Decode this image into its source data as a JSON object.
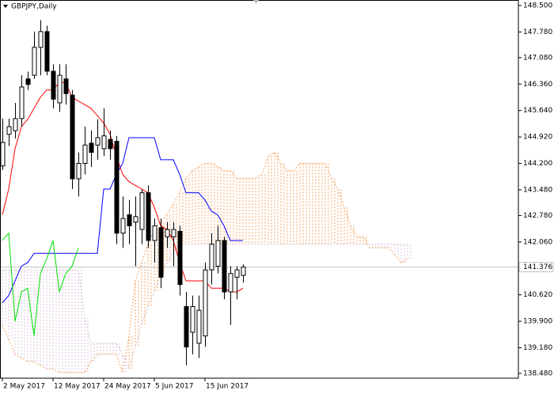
{
  "chart_data": {
    "type": "candlestick",
    "title": "GBPJPY,Daily",
    "categories": [
      "2 May 2017",
      null,
      null,
      null,
      null,
      null,
      null,
      null,
      "12 May 2017",
      null,
      null,
      null,
      null,
      null,
      null,
      null,
      "24 May 2017",
      null,
      null,
      null,
      null,
      null,
      null,
      null,
      "5 Jun 2017",
      null,
      null,
      null,
      null,
      null,
      null,
      null,
      "15 Jun 2017",
      null,
      null,
      null,
      null,
      null,
      null,
      null,
      null,
      null,
      null,
      null,
      null,
      null,
      null,
      null,
      null,
      null,
      null,
      null,
      null,
      null,
      null,
      null,
      null,
      null,
      null,
      null,
      null,
      null,
      null,
      null,
      null
    ],
    "open": [
      144.13,
      144.99,
      145.09,
      145.42,
      146.5,
      146.6,
      147.36,
      147.79,
      146.71,
      145.85,
      146.5,
      146.06,
      143.78,
      144.2,
      144.75,
      144.7,
      144.6,
      144.85,
      144.8,
      142.3,
      142.8,
      142.6,
      142.4,
      143.4,
      142.1,
      142.45,
      142.2,
      142.2,
      142.35,
      140.3,
      139.6,
      139.3,
      139.5,
      141.3,
      141.4,
      142.1,
      140.7,
      141.1,
      141.15,
      null,
      null,
      null,
      null,
      null,
      null,
      null,
      null,
      null,
      null,
      null,
      null,
      null,
      null,
      null,
      null,
      null,
      null,
      null,
      null,
      null,
      null,
      null,
      null,
      null,
      null
    ],
    "high": [
      145.42,
      145.42,
      145.85,
      146.6,
      146.7,
      147.79,
      148.1,
      147.95,
      146.9,
      146.9,
      146.9,
      146.2,
      144.5,
      145.2,
      145.1,
      145.4,
      145.7,
      145.1,
      144.95,
      143.3,
      143.2,
      143.3,
      143.5,
      143.6,
      142.7,
      142.7,
      142.6,
      142.6,
      142.5,
      140.7,
      140.6,
      140.6,
      141.5,
      142.3,
      142.5,
      142.2,
      141.4,
      141.4,
      141.45,
      null,
      null,
      null,
      null,
      null,
      null,
      null,
      null,
      null,
      null,
      null,
      null,
      null,
      null,
      null,
      null,
      null,
      null,
      null,
      null,
      null,
      null,
      null,
      null,
      null,
      null
    ],
    "low": [
      144.02,
      144.67,
      144.88,
      145.2,
      146.2,
      146.5,
      146.6,
      146.6,
      145.7,
      145.6,
      145.8,
      143.5,
      143.3,
      143.9,
      144.1,
      144.3,
      144.4,
      144.3,
      142.0,
      141.9,
      142.0,
      141.4,
      142.0,
      141.9,
      141.5,
      140.8,
      141.9,
      141.4,
      140.6,
      138.7,
      139.0,
      138.9,
      139.2,
      140.9,
      141.2,
      140.5,
      139.8,
      140.5,
      140.95,
      null,
      null,
      null,
      null,
      null,
      null,
      null,
      null,
      null,
      null,
      null,
      null,
      null,
      null,
      null,
      null,
      null,
      null,
      null,
      null,
      null,
      null,
      null,
      null,
      null,
      null
    ],
    "close": [
      144.77,
      145.2,
      145.42,
      146.28,
      146.35,
      147.36,
      147.79,
      146.71,
      145.95,
      146.6,
      146.1,
      143.78,
      144.2,
      144.7,
      144.5,
      144.9,
      144.95,
      144.6,
      142.3,
      142.7,
      142.5,
      142.75,
      143.4,
      142.1,
      142.5,
      141.1,
      142.4,
      142.4,
      140.9,
      139.2,
      140.3,
      140.2,
      141.3,
      142.0,
      142.1,
      140.7,
      141.2,
      141.3,
      141.376,
      null,
      null,
      null,
      null,
      null,
      null,
      null,
      null,
      null,
      null,
      null,
      null,
      null,
      null,
      null,
      null,
      null,
      null,
      null,
      null,
      null,
      null,
      null,
      null,
      null,
      null
    ],
    "candle_colors": {
      "up": "#ffffff",
      "down": "#000000",
      "outline": "#000000"
    },
    "lines": [
      {
        "color": "#ff0000",
        "values": [
          142.8,
          143.5,
          144.6,
          145.2,
          145.4,
          145.7,
          146.0,
          146.2,
          146.2,
          146.4,
          146.4,
          146.0,
          145.9,
          145.8,
          145.7,
          145.5,
          145.3,
          145.0,
          144.4,
          143.9,
          143.7,
          143.6,
          143.5,
          143.4,
          143.0,
          142.5,
          142.4,
          142.1,
          141.5,
          141.0,
          141.0,
          141.0,
          141.0,
          140.8,
          140.8,
          140.8,
          140.7,
          140.7,
          140.8,
          null,
          null,
          null,
          null,
          null,
          null,
          null,
          null,
          null,
          null,
          null,
          null,
          null,
          null,
          null,
          null,
          null,
          null,
          null,
          null,
          null,
          null,
          null,
          null,
          null,
          null
        ]
      },
      {
        "color": "#0000ff",
        "values": [
          140.4,
          140.6,
          141.0,
          141.4,
          141.5,
          141.75,
          141.75,
          141.75,
          141.75,
          141.75,
          141.75,
          141.75,
          141.75,
          141.75,
          141.75,
          141.75,
          143.5,
          143.5,
          143.9,
          144.2,
          144.9,
          144.9,
          144.9,
          144.9,
          144.9,
          144.3,
          144.3,
          144.3,
          143.9,
          143.4,
          143.4,
          143.4,
          143.2,
          142.9,
          142.8,
          142.5,
          142.1,
          142.1,
          142.1,
          null,
          null,
          null,
          null,
          null,
          null,
          null,
          null,
          null,
          null,
          null,
          null,
          null,
          null,
          null,
          null,
          null,
          null,
          null,
          null,
          null,
          null,
          null,
          null,
          null,
          null
        ]
      },
      {
        "color": "#00e000",
        "values": [
          142.1,
          142.3,
          139.9,
          140.7,
          140.8,
          139.5,
          141.2,
          141.6,
          142.1,
          140.7,
          141.2,
          141.4,
          141.9,
          null,
          null,
          null,
          null,
          null,
          null,
          null,
          null,
          null,
          null,
          null,
          null,
          null,
          null,
          null,
          null,
          null,
          null,
          null,
          null,
          null,
          null,
          null,
          null,
          null,
          null,
          null,
          null,
          null,
          null,
          null,
          null,
          null,
          null,
          null,
          null,
          null,
          null,
          null,
          null,
          null,
          null,
          null,
          null,
          null,
          null,
          null,
          null,
          null,
          null,
          null,
          null
        ]
      }
    ],
    "cloud": {
      "span_a": {
        "color": "#f4a460",
        "values": [
          139.8,
          139.4,
          139.0,
          138.9,
          138.8,
          138.8,
          138.7,
          138.6,
          138.6,
          138.5,
          138.5,
          138.5,
          138.5,
          138.5,
          138.8,
          139.0,
          139.0,
          139.0,
          139.0,
          138.5,
          139.5,
          141.0,
          141.5,
          142.0,
          142.4,
          142.6,
          142.8,
          143.1,
          143.4,
          143.8,
          144.0,
          144.1,
          144.2,
          144.2,
          144.1,
          144.0,
          144.0,
          143.8,
          143.8,
          143.8,
          143.8,
          143.9,
          144.4,
          144.5,
          144.2,
          144.0,
          144.0,
          144.2,
          144.2,
          144.2,
          144.2,
          144.2,
          143.8,
          143.5,
          143.0,
          142.5,
          142.2,
          142.2,
          141.9,
          141.9,
          141.9,
          141.9,
          141.7,
          141.5,
          141.6
        ]
      },
      "span_b": {
        "color": "#d8bfd8",
        "values": [
          141.3,
          141.3,
          141.3,
          141.3,
          141.3,
          141.3,
          141.3,
          141.3,
          141.3,
          141.3,
          141.3,
          141.3,
          141.3,
          140.0,
          139.3,
          139.3,
          139.3,
          139.3,
          139.3,
          139.0,
          138.6,
          139.2,
          139.8,
          140.3,
          140.7,
          141.2,
          141.5,
          141.8,
          142.0,
          142.0,
          142.0,
          142.0,
          142.0,
          142.0,
          142.0,
          142.0,
          142.0,
          142.0,
          142.0,
          142.0,
          142.0,
          142.0,
          142.0,
          142.0,
          142.0,
          142.0,
          142.0,
          142.0,
          142.0,
          142.0,
          142.0,
          142.0,
          142.0,
          142.0,
          142.0,
          142.0,
          142.0,
          142.0,
          142.0,
          142.0,
          142.0,
          142.0,
          142.0,
          142.0,
          142.0
        ]
      }
    },
    "last_price": 141.376,
    "last_price_color": "#c0c0c0",
    "ylim": [
      138.35,
      148.65
    ],
    "yticks": [
      {
        "value": 148.5,
        "label": "148.500"
      },
      {
        "value": 147.78,
        "label": "147.780"
      },
      {
        "value": 147.08,
        "label": "147.080"
      },
      {
        "value": 146.36,
        "label": "146.360"
      },
      {
        "value": 145.64,
        "label": "145.640"
      },
      {
        "value": 144.92,
        "label": "144.920"
      },
      {
        "value": 144.2,
        "label": "144.200"
      },
      {
        "value": 143.48,
        "label": "143.480"
      },
      {
        "value": 142.78,
        "label": "142.780"
      },
      {
        "value": 142.06,
        "label": "142.060"
      },
      {
        "value": 140.62,
        "label": "140.620"
      },
      {
        "value": 139.9,
        "label": "139.900"
      },
      {
        "value": 139.18,
        "label": "139.180"
      },
      {
        "value": 138.48,
        "label": "138.480"
      }
    ]
  }
}
